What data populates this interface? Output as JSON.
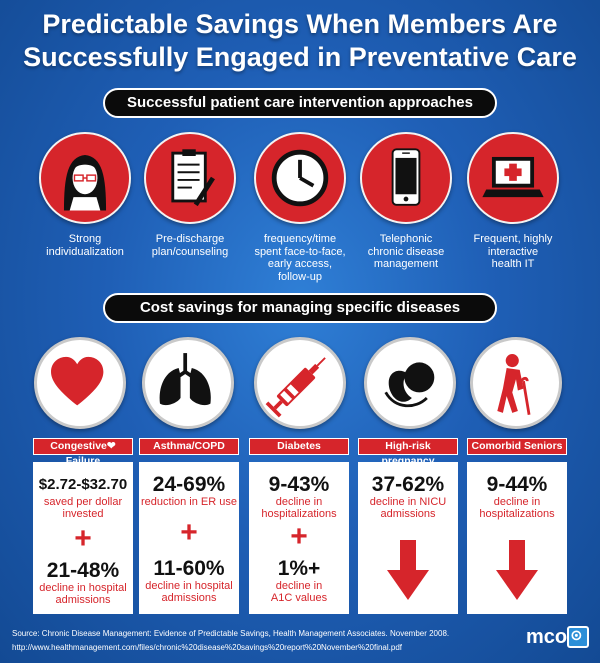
{
  "title_line1": "Predictable Savings When Members Are",
  "title_line2": "Successfully Engaged in Preventative Care",
  "section1": {
    "heading": "Successful patient care intervention approaches",
    "items": [
      {
        "icon": "woman-avatar-icon",
        "line1": "Strong",
        "line2": "individualization",
        "line3": "",
        "line4": ""
      },
      {
        "icon": "clipboard-pen-icon",
        "line1": "Pre-discharge",
        "line2": "plan/counseling",
        "line3": "",
        "line4": ""
      },
      {
        "icon": "clock-icon",
        "line1": "frequency/time",
        "line2": "spent face-to-face,",
        "line3": "early access,",
        "line4": "follow-up"
      },
      {
        "icon": "smartphone-icon",
        "line1": "Telephonic",
        "line2": "chronic disease",
        "line3": "management",
        "line4": ""
      },
      {
        "icon": "laptop-medical-icon",
        "line1": "Frequent, highly",
        "line2": "interactive",
        "line3": "health IT",
        "line4": ""
      }
    ]
  },
  "section2": {
    "heading": "Cost savings for managing specific diseases",
    "diseases": [
      {
        "icon": "heart-icon",
        "label_a": "Congestive",
        "label_b": "Failure",
        "stat1": "$2.72-$32.70",
        "desc1a": "saved per dollar",
        "desc1b": "invested",
        "plus": "+",
        "stat2": "21-48%",
        "desc2a": "decline in hospital",
        "desc2b": "admissions"
      },
      {
        "icon": "lungs-icon",
        "label": "Asthma/COPD",
        "stat1": "24-69%",
        "desc1a": "reduction in ER use",
        "plus": "+",
        "stat2": "11-60%",
        "desc2a": "decline in hospital",
        "desc2b": "admissions"
      },
      {
        "icon": "syringe-icon",
        "label": "Diabetes",
        "stat1": "9-43%",
        "desc1a": "decline in",
        "desc1b": "hospitalizations",
        "plus": "+",
        "stat2": "1%+",
        "desc2a": "decline in",
        "desc2b": "A1C values"
      },
      {
        "icon": "fetus-icon",
        "label": "High-risk pregnancy",
        "stat1": "37-62%",
        "desc1a": "decline in NICU",
        "desc1b": "admissions"
      },
      {
        "icon": "senior-cane-icon",
        "label": "Comorbid Seniors",
        "stat1": "9-44%",
        "desc1a": "decline in",
        "desc1b": "hospitalizations"
      }
    ]
  },
  "source_line1": "Source:  Chronic Disease Management: Evidence of Predictable Savings, Health Management Associates. November 2008.",
  "source_line2": "http://www.healthmanagement.com/files/chronic%20disease%20savings%20report%20November%20final.pdf",
  "logo_text": "mcol",
  "colors": {
    "accent_red": "#d6252b",
    "background_blue": "#1f5fb6",
    "banner_black": "#0b0b0b"
  }
}
